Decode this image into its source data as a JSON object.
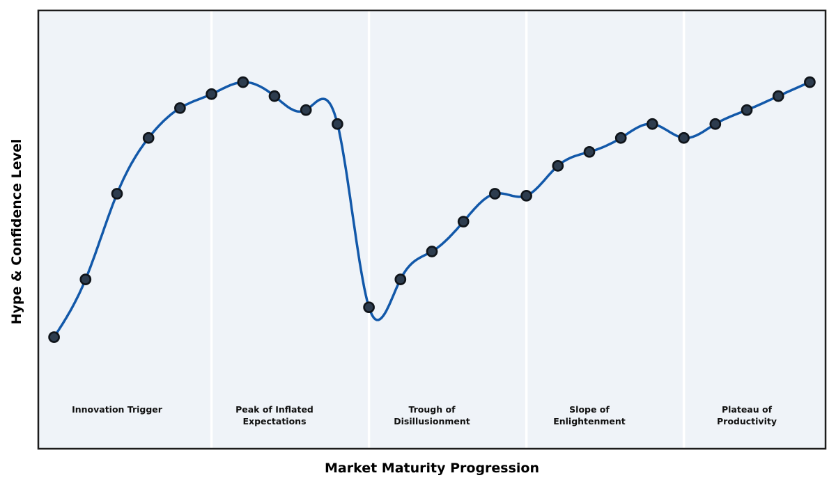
{
  "chart_data": {
    "type": "line",
    "title": "",
    "xlabel": "Market Maturity Progression",
    "ylabel": "Hype & Confidence Level",
    "x": [
      0,
      1,
      2,
      3,
      4,
      5,
      6,
      7,
      8,
      9,
      10,
      11,
      12,
      13,
      14,
      15,
      16,
      17,
      18,
      19,
      20,
      21,
      22,
      23,
      24
    ],
    "series": [
      {
        "name": "hype-confidence",
        "values": [
          28,
          42.5,
          64,
          78,
          85.5,
          89,
          92,
          88.5,
          85,
          81.5,
          35.5,
          42.5,
          49.5,
          57,
          64,
          63.5,
          71,
          74.5,
          78,
          81.5,
          78,
          81.5,
          85,
          88.5,
          92
        ]
      }
    ],
    "xlim": [
      -0.5,
      24.5
    ],
    "ylim": [
      0,
      110
    ],
    "grid": false,
    "legend": "none",
    "ticks": "none",
    "smoothing": "cubic-spline",
    "markers": true,
    "phase_dividers_x": [
      5,
      10,
      15,
      20
    ],
    "phases": [
      {
        "label": "Innovation Trigger",
        "center_x": 2
      },
      {
        "label": "Peak of Inflated\nExpectations",
        "center_x": 7
      },
      {
        "label": "Trough of\nDisillusionment",
        "center_x": 12
      },
      {
        "label": "Slope of\nEnlightenment",
        "center_x": 17
      },
      {
        "label": "Plateau of\nProductivity",
        "center_x": 22
      }
    ],
    "colors": {
      "line": "#1258a9",
      "marker_fill": "#2d3c4e",
      "marker_edge": "#0f141a",
      "plot_bg": "#eff3f8",
      "figure_bg": "#ffffff",
      "frame": "#1c1c1c",
      "divider": "#ffffff",
      "phase_label": "#111111",
      "axis_label": "#000000"
    }
  }
}
